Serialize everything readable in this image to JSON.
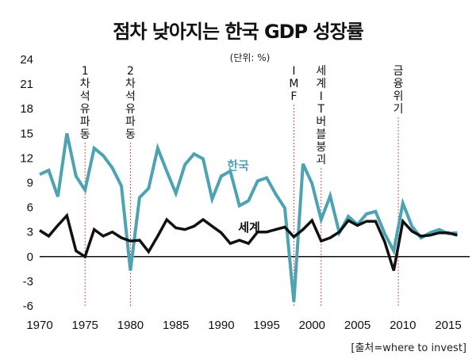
{
  "title": "점차 낮아지는 한국 GDP 성장률",
  "unit": "(단위: %)",
  "source": "[출처=where to invest]",
  "colors": {
    "korea": "#4ea3b3",
    "world": "#111111",
    "event_line": "#d9534f"
  },
  "chart_data": {
    "type": "line",
    "title": "점차 낮아지는 한국 GDP 성장률",
    "subtitle": "(단위: %)",
    "xlabel": "",
    "ylabel": "",
    "xlim": [
      1970,
      2017
    ],
    "ylim": [
      -6,
      24
    ],
    "x_ticks": [
      1970,
      1975,
      1980,
      1985,
      1990,
      1995,
      2000,
      2005,
      2010,
      2015
    ],
    "y_ticks": [
      -6,
      -3,
      0,
      3,
      6,
      9,
      12,
      15,
      18,
      21,
      24
    ],
    "grid": false,
    "x": [
      1970,
      1971,
      1972,
      1973,
      1974,
      1975,
      1976,
      1977,
      1978,
      1979,
      1980,
      1981,
      1982,
      1983,
      1984,
      1985,
      1986,
      1987,
      1988,
      1989,
      1990,
      1991,
      1992,
      1993,
      1994,
      1995,
      1996,
      1997,
      1998,
      1999,
      2000,
      2001,
      2002,
      2003,
      2004,
      2005,
      2006,
      2007,
      2008,
      2009,
      2010,
      2011,
      2012,
      2013,
      2014,
      2015,
      2016
    ],
    "series": [
      {
        "name": "한국",
        "color": "#4ea3b3",
        "values": [
          10.0,
          10.5,
          7.3,
          15.0,
          9.8,
          8.1,
          13.2,
          12.3,
          10.8,
          8.6,
          -1.7,
          7.2,
          8.3,
          13.2,
          10.4,
          7.7,
          11.2,
          12.5,
          11.9,
          7.0,
          9.8,
          10.4,
          6.2,
          6.8,
          9.2,
          9.6,
          7.6,
          5.9,
          -5.5,
          11.3,
          8.9,
          4.5,
          7.4,
          2.9,
          4.9,
          3.9,
          5.2,
          5.5,
          2.8,
          0.7,
          6.5,
          3.7,
          2.3,
          2.9,
          3.3,
          2.8,
          2.9
        ]
      },
      {
        "name": "세계",
        "color": "#111111",
        "values": [
          3.2,
          2.5,
          3.8,
          5.0,
          0.7,
          0.0,
          3.3,
          2.5,
          3.0,
          2.3,
          1.9,
          2.0,
          0.6,
          2.5,
          4.5,
          3.5,
          3.3,
          3.7,
          4.5,
          3.7,
          2.9,
          1.6,
          2.0,
          1.6,
          3.0,
          3.0,
          3.3,
          3.6,
          2.4,
          3.3,
          4.4,
          1.9,
          2.3,
          3.0,
          4.4,
          3.8,
          4.3,
          4.3,
          1.8,
          -1.7,
          4.3,
          3.1,
          2.5,
          2.6,
          2.9,
          2.9,
          2.6
        ]
      }
    ],
    "annotations": [
      {
        "year": 1975,
        "text": "1차석유파동"
      },
      {
        "year": 1980,
        "text": "2차석유파동"
      },
      {
        "year": 1998,
        "text": "IMF"
      },
      {
        "year": 2001,
        "text": "세계IT버블붕괴"
      },
      {
        "year": 2009.5,
        "text": "금융위기"
      }
    ],
    "series_labels": [
      {
        "series": "한국",
        "text": "한국"
      },
      {
        "series": "세계",
        "text": "세계"
      }
    ]
  }
}
